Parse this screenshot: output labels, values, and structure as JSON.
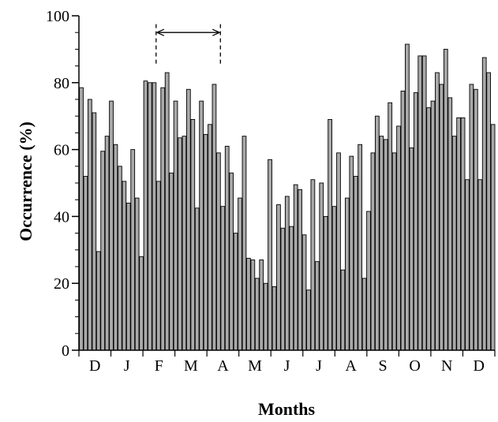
{
  "chart_data": {
    "type": "bar",
    "title": "",
    "xlabel": "Months",
    "ylabel": "Occurrence (%)",
    "ylim": [
      0,
      100
    ],
    "yticks": [
      "0",
      "20",
      "40",
      "60",
      "80",
      "100"
    ],
    "month_labels": [
      "D",
      "J",
      "F",
      "M",
      "A",
      "M",
      "J",
      "J",
      "A",
      "S",
      "O",
      "N",
      "D"
    ],
    "values": [
      78.5,
      52,
      75,
      71,
      29.5,
      59.5,
      64,
      74.5,
      61.5,
      55,
      50.5,
      44,
      60,
      45.5,
      28,
      80.5,
      80,
      80,
      50.5,
      78.5,
      83,
      53,
      74.5,
      63.5,
      64,
      78,
      69,
      42.5,
      74.5,
      64.5,
      67.5,
      79.5,
      59,
      43,
      61,
      53,
      35,
      45.5,
      64,
      27.5,
      27,
      21.5,
      27,
      20,
      57,
      19,
      43.5,
      36.5,
      46,
      37,
      49.5,
      48,
      34.5,
      18,
      51,
      26.5,
      50,
      40,
      69,
      43,
      59,
      24,
      45.5,
      58,
      52,
      61.5,
      21.5,
      41.5,
      59,
      70,
      64,
      63,
      74,
      59,
      67,
      77.5,
      91.5,
      60.5,
      77,
      88,
      88,
      72.5,
      74.5,
      83,
      79.5,
      90,
      75.5,
      64,
      69.5,
      69.5,
      51,
      79.5,
      78,
      51,
      87.5,
      83,
      67.5
    ],
    "annotation": {
      "type": "double-arrow",
      "from_index": 18,
      "to_index": 33,
      "y": 95
    },
    "grid": false,
    "legend": "none",
    "bar_color": "#a9a9a9"
  }
}
